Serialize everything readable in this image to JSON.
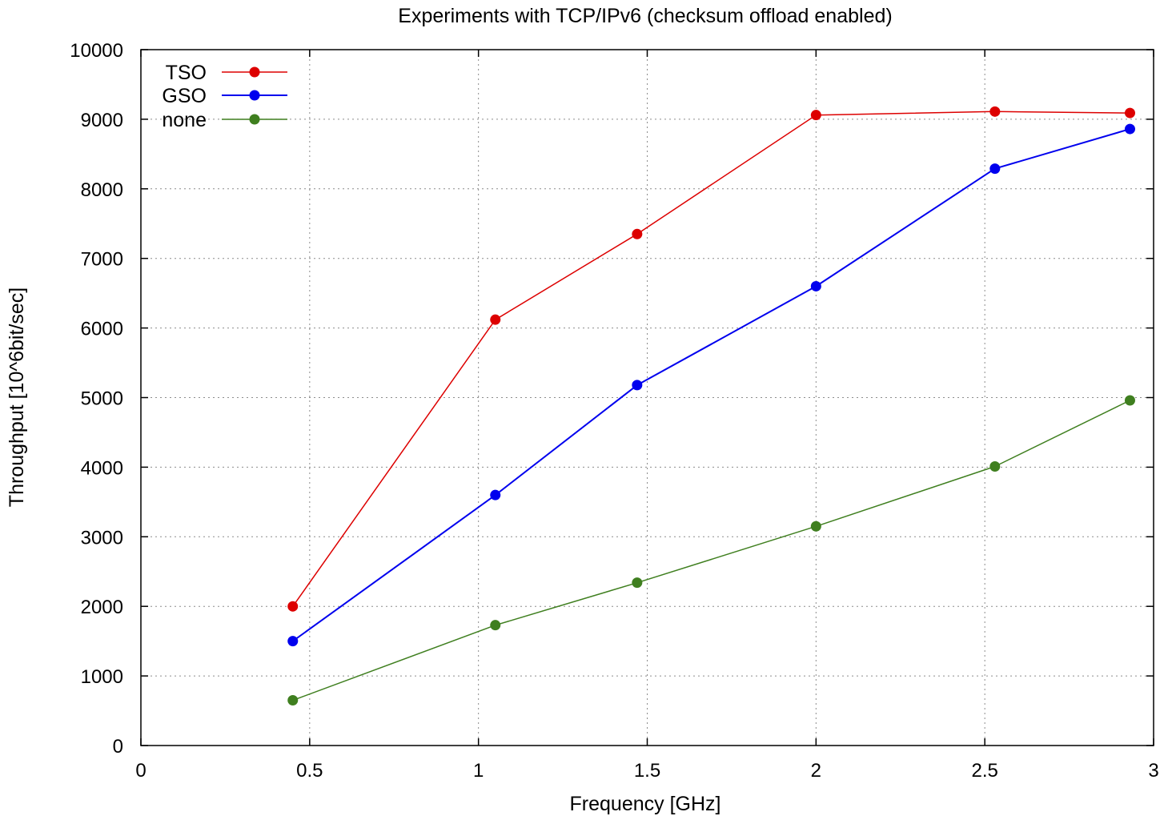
{
  "chart_data": {
    "type": "line",
    "title": "Experiments with TCP/IPv6 (checksum offload enabled)",
    "xlabel": "Frequency [GHz]",
    "ylabel": "Throughput [10^6bit/sec]",
    "xlim": [
      0,
      3
    ],
    "ylim": [
      0,
      10000
    ],
    "x_ticks": [
      0,
      0.5,
      1,
      1.5,
      2,
      2.5,
      3
    ],
    "x_tick_labels": [
      "0",
      "0.5",
      "1",
      "1.5",
      "2",
      "2.5",
      "3"
    ],
    "y_ticks": [
      0,
      1000,
      2000,
      3000,
      4000,
      5000,
      6000,
      7000,
      8000,
      9000,
      10000
    ],
    "y_tick_labels": [
      "0",
      "1000",
      "2000",
      "3000",
      "4000",
      "5000",
      "6000",
      "7000",
      "8000",
      "9000",
      "10000"
    ],
    "grid": true,
    "legend_position": "top-left",
    "x": [
      0.45,
      1.05,
      1.47,
      2.0,
      2.53,
      2.93
    ],
    "series": [
      {
        "name": "TSO",
        "color": "#dd0000",
        "values": [
          2000,
          6120,
          7350,
          9060,
          9110,
          9090
        ]
      },
      {
        "name": "GSO",
        "color": "#0000ee",
        "values": [
          1500,
          3600,
          5180,
          6600,
          8290,
          8860
        ]
      },
      {
        "name": "none",
        "color": "#3f7f1f",
        "values": [
          650,
          1730,
          2340,
          3150,
          4010,
          4960
        ]
      }
    ]
  }
}
